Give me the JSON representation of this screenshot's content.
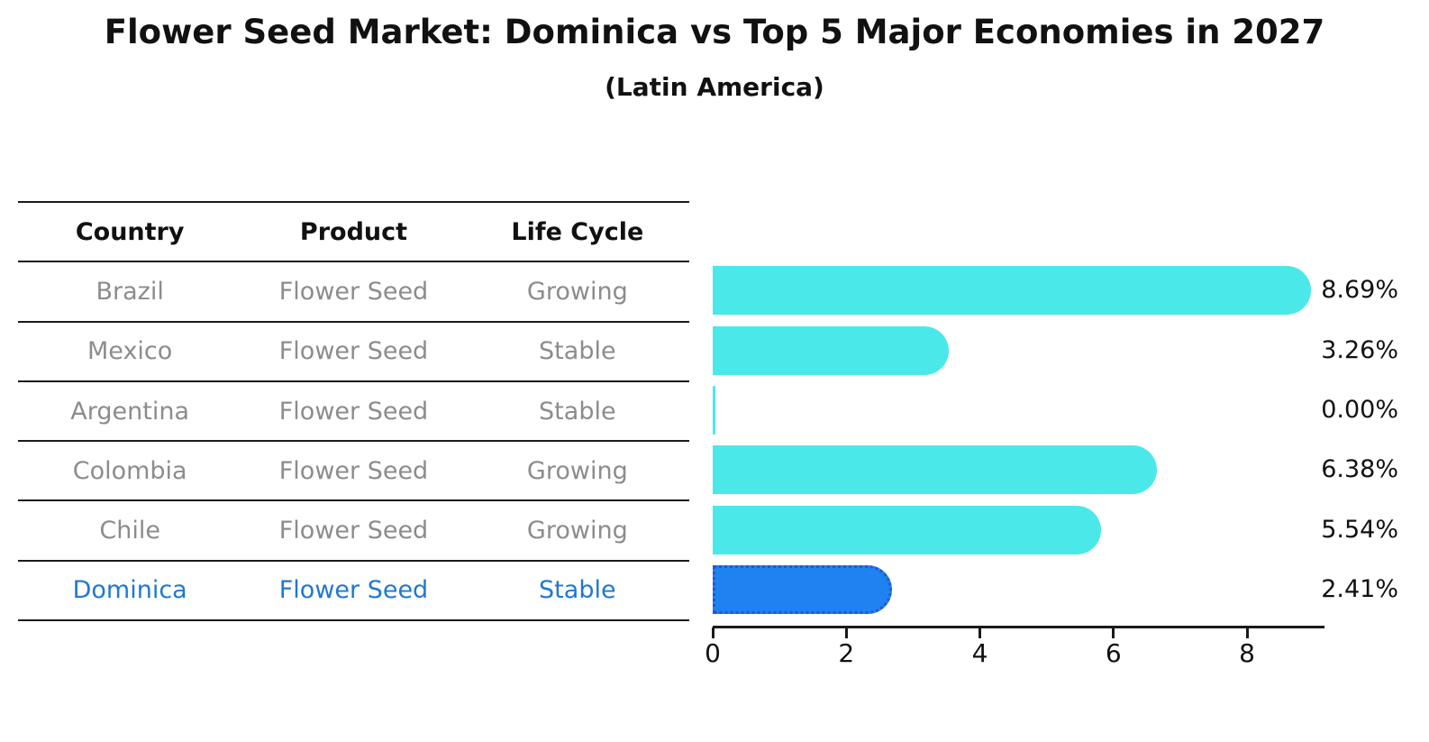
{
  "chart_data": {
    "type": "bar",
    "orientation": "horizontal",
    "title": "Flower Seed Market: Dominica vs Top 5 Major Economies in 2027",
    "subtitle": "(Latin America)",
    "categories": [
      "Brazil",
      "Mexico",
      "Argentina",
      "Colombia",
      "Chile",
      "Dominica"
    ],
    "values": [
      8.69,
      3.26,
      0.0,
      6.38,
      5.54,
      2.41
    ],
    "value_labels": [
      "8.69%",
      "3.26%",
      "0.00%",
      "6.38%",
      "5.54%",
      "2.41%"
    ],
    "highlight_index": 5,
    "xlim": [
      0,
      9.16
    ],
    "x_tick_values": [
      0,
      2,
      4,
      6,
      8
    ],
    "x_tick_labels": [
      "0",
      "2",
      "4",
      "6",
      "8"
    ],
    "grid": false,
    "legend": "none",
    "colors": {
      "bar": "#4be8e9",
      "highlight_bar": "#1e82f0",
      "highlight_border": "#2457cc",
      "text": "#111111",
      "muted_text": "#8c8c8c",
      "highlight_text": "#1f78d1",
      "axis": "#1a1a1a"
    }
  },
  "table": {
    "headers": [
      "Country",
      "Product",
      "Life Cycle"
    ],
    "rows": [
      {
        "country": "Brazil",
        "product": "Flower Seed",
        "life_cycle": "Growing",
        "highlight": false
      },
      {
        "country": "Mexico",
        "product": "Flower Seed",
        "life_cycle": "Stable",
        "highlight": false
      },
      {
        "country": "Argentina",
        "product": "Flower Seed",
        "life_cycle": "Stable",
        "highlight": false
      },
      {
        "country": "Colombia",
        "product": "Flower Seed",
        "life_cycle": "Growing",
        "highlight": false
      },
      {
        "country": "Chile",
        "product": "Flower Seed",
        "life_cycle": "Growing",
        "highlight": false
      },
      {
        "country": "Dominica",
        "product": "Flower Seed",
        "life_cycle": "Stable",
        "highlight": true
      }
    ]
  }
}
